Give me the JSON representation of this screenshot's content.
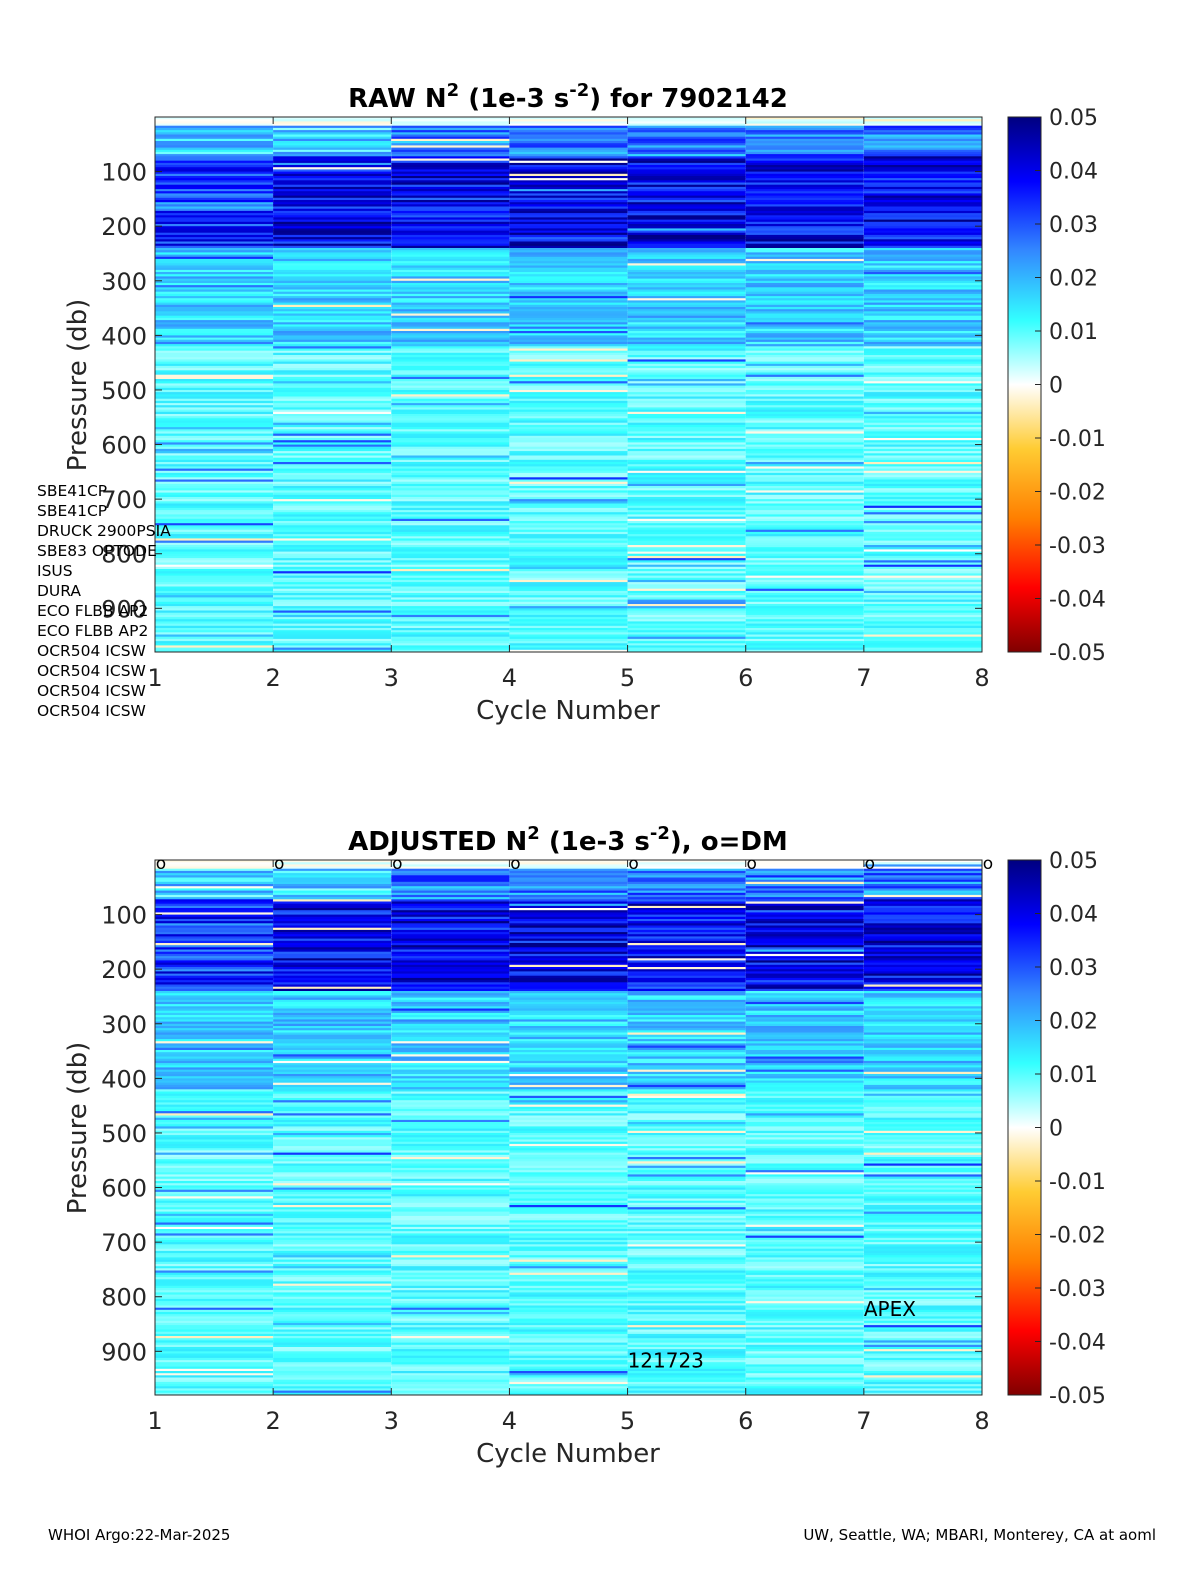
{
  "chart_data": [
    {
      "type": "heatmap",
      "title": "RAW N² (1e-3 s⁻²) for 7902142",
      "title_parts": {
        "pre": "RAW N",
        "sup1": "2",
        "mid": " (1e-3 s",
        "sup2": "-2",
        "post": ") for 7902142"
      },
      "xlabel": "Cycle Number",
      "ylabel": "Pressure (db)",
      "x_ticks": [
        1,
        2,
        3,
        4,
        5,
        6,
        7,
        8
      ],
      "y_ticks": [
        100,
        200,
        300,
        400,
        500,
        600,
        700,
        800,
        900
      ],
      "xlim": [
        1,
        8
      ],
      "ylim": [
        980,
        0
      ],
      "y_reversed": true,
      "cycles": [
        1,
        2,
        3,
        4,
        5,
        6,
        7
      ],
      "colorbar": {
        "min": -0.05,
        "max": 0.05,
        "ticks": [
          "0.05",
          "0.04",
          "0.03",
          "0.02",
          "0.01",
          "0",
          "-0.01",
          "-0.02",
          "-0.03",
          "-0.04",
          "-0.05"
        ],
        "colormap": "jet-white-center"
      },
      "grid": false
    },
    {
      "type": "heatmap",
      "title": "ADJUSTED N² (1e-3 s⁻²), o=DM",
      "title_parts": {
        "pre": "ADJUSTED N",
        "sup1": "2",
        "mid": " (1e-3 s",
        "sup2": "-2",
        "post": "), o=DM"
      },
      "xlabel": "Cycle Number",
      "ylabel": "Pressure (db)",
      "x_ticks": [
        1,
        2,
        3,
        4,
        5,
        6,
        7,
        8
      ],
      "y_ticks": [
        100,
        200,
        300,
        400,
        500,
        600,
        700,
        800,
        900
      ],
      "xlim": [
        1,
        8
      ],
      "ylim": [
        980,
        0
      ],
      "y_reversed": true,
      "cycles": [
        1,
        2,
        3,
        4,
        5,
        6,
        7
      ],
      "dm_markers": {
        "label": "o",
        "cycles": [
          1,
          2,
          3,
          4,
          5,
          6,
          7,
          8
        ]
      },
      "annotations": [
        {
          "text": "APEX",
          "x": 7,
          "y": 835
        },
        {
          "text": "121723",
          "x": 5,
          "y": 930
        }
      ],
      "colorbar": {
        "min": -0.05,
        "max": 0.05,
        "ticks": [
          "0.05",
          "0.04",
          "0.03",
          "0.02",
          "0.01",
          "0",
          "-0.01",
          "-0.02",
          "-0.03",
          "-0.04",
          "-0.05"
        ],
        "colormap": "jet-white-center"
      },
      "grid": false
    }
  ],
  "sensors": [
    "SBE41CP",
    "SBE41CP",
    "DRUCK 2900PSIA",
    "SBE83 OPTODE",
    "ISUS",
    "DURA",
    "ECO FLBB AP2",
    "ECO FLBB AP2",
    "OCR504 ICSW",
    "OCR504 ICSW",
    "OCR504 ICSW",
    "OCR504 ICSW"
  ],
  "footer": {
    "left": "WHOI Argo:22-Mar-2025",
    "right": "UW, Seattle, WA; MBARI, Monterey, CA at aoml"
  }
}
